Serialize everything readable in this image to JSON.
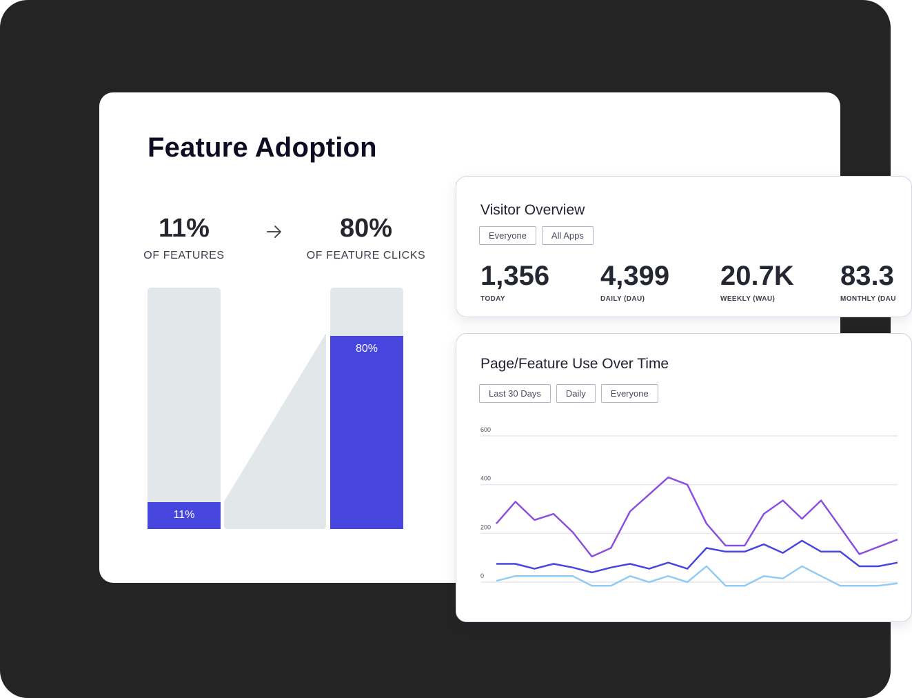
{
  "feature_adoption": {
    "title": "Feature Adoption",
    "left_stat": {
      "value": "11%",
      "label": "OF FEATURES"
    },
    "right_stat": {
      "value": "80%",
      "label": "OF FEATURE CLICKS"
    },
    "left_bar": {
      "label": "11%",
      "fraction": 0.11
    },
    "right_bar": {
      "label": "80%",
      "fraction": 0.8
    },
    "arrow_icon": "arrow-right-icon",
    "accent_color": "#4646df",
    "track_color": "#e2e7ea"
  },
  "visitor_overview": {
    "title": "Visitor Overview",
    "filters": [
      "Everyone",
      "All Apps"
    ],
    "metrics": [
      {
        "value": "1,356",
        "label": "TODAY"
      },
      {
        "value": "4,399",
        "label": "DAILY (DAU)"
      },
      {
        "value": "20.7K",
        "label": "WEEKLY (WAU)"
      },
      {
        "value": "83.3",
        "label": "MONTHLY (DAU"
      }
    ]
  },
  "page_feature_use": {
    "title": "Page/Feature Use Over Time",
    "filters": [
      "Last 30 Days",
      "Daily",
      "Everyone"
    ]
  },
  "chart_data": {
    "type": "line",
    "title": "Page/Feature Use Over Time",
    "xlabel": "",
    "ylabel": "",
    "ylim": [
      0,
      600
    ],
    "yticks": [
      "600",
      "400",
      "200",
      "0"
    ],
    "grid": true,
    "x": [
      1,
      2,
      3,
      4,
      5,
      6,
      7,
      8,
      9,
      10,
      11,
      12,
      13,
      14,
      15,
      16,
      17,
      18,
      19,
      20,
      21,
      22
    ],
    "series": [
      {
        "name": "purple",
        "color": "#8a4fe0",
        "values": [
          240,
          330,
          255,
          280,
          205,
          105,
          140,
          290,
          360,
          430,
          400,
          240,
          150,
          150,
          280,
          335,
          260,
          335,
          225,
          115,
          145,
          175
        ]
      },
      {
        "name": "indigo",
        "color": "#4646df",
        "values": [
          75,
          75,
          55,
          75,
          60,
          40,
          60,
          75,
          55,
          80,
          55,
          140,
          125,
          125,
          155,
          120,
          170,
          125,
          125,
          65,
          65,
          80
        ]
      },
      {
        "name": "light-blue",
        "color": "#92ccf2",
        "values": [
          5,
          25,
          25,
          25,
          25,
          -15,
          -15,
          25,
          0,
          25,
          0,
          65,
          -15,
          -15,
          25,
          15,
          65,
          25,
          -15,
          -15,
          -15,
          -5
        ]
      }
    ]
  }
}
